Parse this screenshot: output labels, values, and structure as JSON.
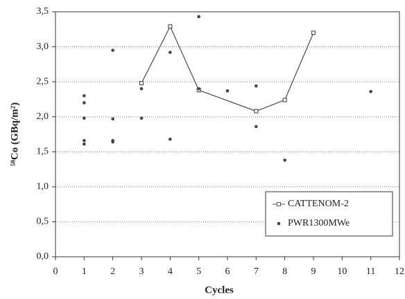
{
  "chart_data": {
    "type": "line",
    "x_label": "Cycles",
    "y_label": "⁵⁸Co (GBq/m²)",
    "xlim": [
      0,
      12
    ],
    "xticks": [
      0,
      1,
      2,
      3,
      4,
      5,
      6,
      7,
      8,
      9,
      10,
      11,
      12
    ],
    "ylim": [
      0,
      3.5
    ],
    "yticks": [
      {
        "value": 0,
        "label": "0,0"
      },
      {
        "value": 0.5,
        "label": "0,5"
      },
      {
        "value": 1,
        "label": "1,0"
      },
      {
        "value": 1.5,
        "label": "1,5"
      },
      {
        "value": 2,
        "label": "2,0"
      },
      {
        "value": 2.5,
        "label": "2,5"
      },
      {
        "value": 3,
        "label": "3,0"
      },
      {
        "value": 3.5,
        "label": "3,5"
      }
    ],
    "grid": true,
    "legend": "lower right",
    "series": [
      {
        "name": "CATTENOM-2",
        "color": "#555555",
        "line": true,
        "x": [
          3,
          4,
          5,
          7,
          8,
          9
        ],
        "values": [
          2.48,
          3.29,
          2.38,
          2.08,
          2.24,
          3.2
        ]
      },
      {
        "name": "PWR1300MWe",
        "color": "#444444",
        "line": false,
        "x": [
          1,
          1,
          1,
          1,
          1,
          2,
          2,
          2,
          2,
          3,
          3,
          4,
          4,
          5,
          5,
          6,
          7,
          7,
          8,
          11
        ],
        "values": [
          2.3,
          2.2,
          1.98,
          1.66,
          1.61,
          2.95,
          1.97,
          1.66,
          1.64,
          2.4,
          1.98,
          2.92,
          1.68,
          3.43,
          2.4,
          2.37,
          2.44,
          1.86,
          1.38,
          2.36
        ]
      }
    ]
  }
}
